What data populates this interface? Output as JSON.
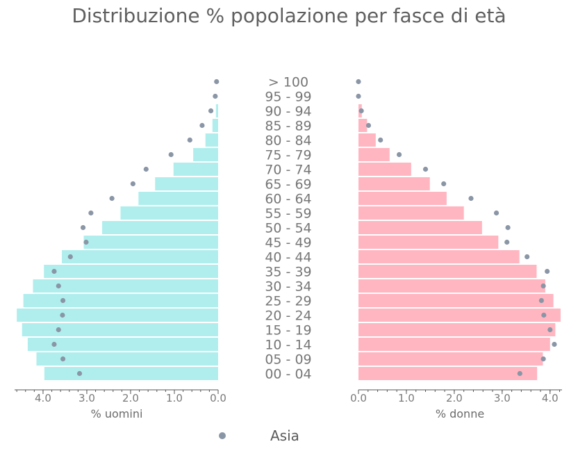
{
  "title": "Distribuzione % popolazione per fasce di età",
  "colors": {
    "male_bar": "#b0eeee",
    "female_bar": "#ffb6c1",
    "dot": "#8a96a6",
    "axis": "#555555",
    "text": "#767676"
  },
  "chart_data": {
    "type": "bar",
    "orientation": "horizontal-population-pyramid",
    "categories": [
      "> 100",
      "95 - 99",
      "90 - 94",
      "85 - 89",
      "80 - 84",
      "75 - 79",
      "70 - 74",
      "65 - 69",
      "60 - 64",
      "55 - 59",
      "50 - 54",
      "45 - 49",
      "40 - 44",
      "35 - 39",
      "30 - 34",
      "25 - 29",
      "20 - 24",
      "15 - 19",
      "10 - 14",
      "05 - 09",
      "00 - 04"
    ],
    "series": [
      {
        "values": [
          0.0,
          0.0,
          0.05,
          0.13,
          0.29,
          0.57,
          1.02,
          1.44,
          1.82,
          2.23,
          2.65,
          3.07,
          3.57,
          3.98,
          4.23,
          4.45,
          4.6,
          4.48,
          4.35,
          4.15,
          3.97
        ]
      },
      {
        "values": [
          0.0,
          0.0,
          0.07,
          0.18,
          0.36,
          0.65,
          1.1,
          1.49,
          1.84,
          2.2,
          2.58,
          2.92,
          3.36,
          3.72,
          3.9,
          4.07,
          4.22,
          4.11,
          4.0,
          3.85,
          3.73
        ]
      },
      {
        "name": "Asia",
        "side": "male",
        "values": [
          0.02,
          0.05,
          0.15,
          0.35,
          0.63,
          1.06,
          1.63,
          1.93,
          2.41,
          2.89,
          3.07,
          3.0,
          3.36,
          3.73,
          3.63,
          3.53,
          3.54,
          3.63,
          3.73,
          3.53,
          3.15
        ]
      },
      {
        "name": "Asia",
        "side": "female",
        "values": [
          0.0,
          0.0,
          0.06,
          0.21,
          0.46,
          0.85,
          1.4,
          1.78,
          2.35,
          2.88,
          3.12,
          3.1,
          3.52,
          3.94,
          3.86,
          3.82,
          3.87,
          4.0,
          4.09,
          3.86,
          3.37
        ]
      }
    ],
    "left_axis": {
      "label": "% uomini",
      "range": [
        4.65,
        0.0
      ],
      "ticks": [
        4.0,
        3.0,
        2.0,
        1.0,
        0.0
      ],
      "tick_labels": [
        "4.0",
        "3.0",
        "2.0",
        "1.0",
        "0.0"
      ]
    },
    "right_axis": {
      "label": "% donne",
      "range": [
        0.0,
        4.25
      ],
      "ticks": [
        0.0,
        1.0,
        2.0,
        3.0,
        4.0
      ],
      "tick_labels": [
        "0.0",
        "1.0",
        "2.0",
        "3.0",
        "4.0"
      ]
    },
    "legend": {
      "position": "bottom-center",
      "entries": [
        "Asia"
      ]
    },
    "grid": false
  }
}
